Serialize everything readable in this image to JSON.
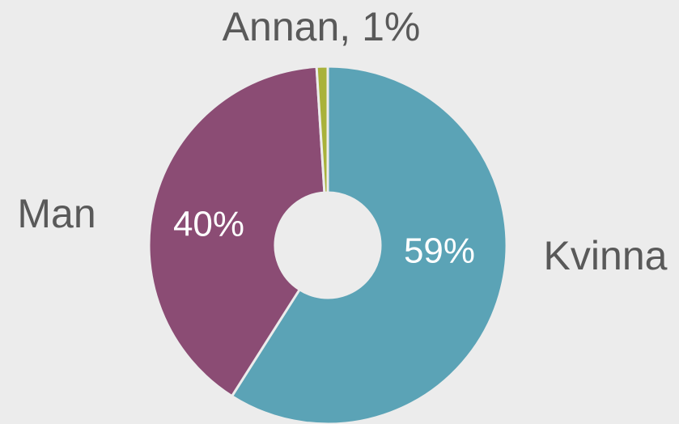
{
  "chart_data": {
    "type": "donut",
    "categories": [
      "Kvinna",
      "Man",
      "Annan"
    ],
    "values": [
      59,
      40,
      1
    ],
    "value_labels": [
      "59%",
      "40%",
      "1%"
    ],
    "colors": [
      "#5ba3b6",
      "#8b4c74",
      "#a9b23a"
    ]
  }
}
